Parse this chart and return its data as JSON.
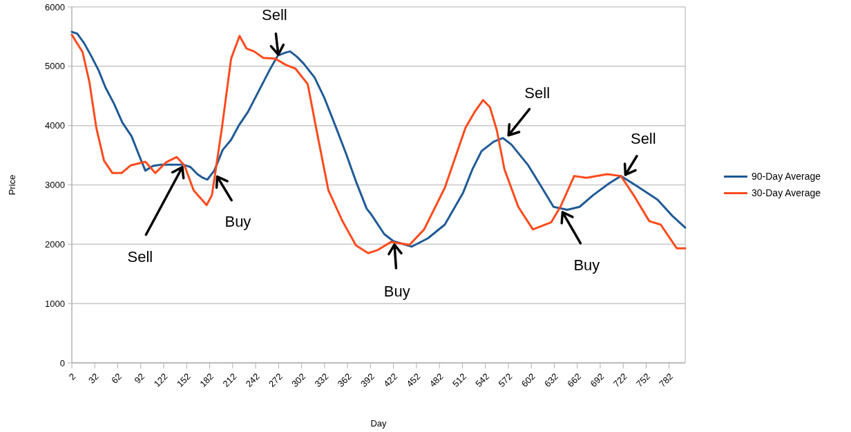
{
  "chart_data": {
    "type": "line",
    "xlabel": "Day",
    "ylabel": "Price",
    "xlim": [
      2,
      803
    ],
    "xticks": [
      2,
      32,
      62,
      92,
      122,
      152,
      182,
      212,
      242,
      272,
      302,
      332,
      362,
      392,
      422,
      452,
      482,
      512,
      542,
      572,
      602,
      632,
      662,
      692,
      722,
      752,
      782
    ],
    "ylim": [
      0,
      6000
    ],
    "yticks": [
      0,
      1000,
      2000,
      3000,
      4000,
      5000,
      6000
    ],
    "grid": "y",
    "legend": "right",
    "series": [
      {
        "name": "90-Day Average",
        "color": "#1f5a96",
        "x": [
          2,
          9,
          18,
          27,
          37,
          46,
          57,
          68,
          80,
          91,
          98,
          108,
          119,
          137,
          148,
          157,
          166,
          173,
          179,
          188,
          199,
          210,
          220,
          232,
          246,
          260,
          271,
          281,
          287,
          296,
          305,
          319,
          332,
          346,
          360,
          373,
          387,
          392,
          410,
          422,
          446,
          467,
          489,
          513,
          525,
          537,
          553,
          565,
          576,
          598,
          616,
          631,
          649,
          665,
          683,
          704,
          719,
          740,
          767,
          786,
          803
        ],
        "values": [
          5580,
          5550,
          5390,
          5180,
          4930,
          4640,
          4370,
          4050,
          3820,
          3460,
          3240,
          3320,
          3340,
          3340,
          3340,
          3300,
          3180,
          3120,
          3090,
          3240,
          3590,
          3760,
          4000,
          4230,
          4580,
          4930,
          5180,
          5230,
          5250,
          5160,
          5040,
          4810,
          4460,
          4000,
          3530,
          3060,
          2600,
          2520,
          2170,
          2050,
          1960,
          2100,
          2330,
          2870,
          3260,
          3570,
          3730,
          3790,
          3680,
          3330,
          2950,
          2630,
          2580,
          2630,
          2830,
          3030,
          3150,
          2980,
          2750,
          2480,
          2280
        ]
      },
      {
        "name": "30-Day Average",
        "color": "#ff4a1c",
        "x": [
          2,
          16,
          25,
          34,
          44,
          55,
          67,
          79,
          98,
          111,
          125,
          139,
          149,
          161,
          178,
          185,
          198,
          210,
          221,
          230,
          240,
          252,
          267,
          282,
          294,
          310,
          321,
          337,
          355,
          373,
          389,
          401,
          419,
          443,
          462,
          489,
          516,
          528,
          539,
          548,
          557,
          567,
          585,
          604,
          628,
          640,
          658,
          674,
          701,
          719,
          737,
          756,
          771,
          792,
          803
        ],
        "values": [
          5530,
          5240,
          4730,
          3960,
          3410,
          3200,
          3200,
          3330,
          3390,
          3200,
          3380,
          3470,
          3330,
          2910,
          2660,
          2830,
          3960,
          5130,
          5510,
          5300,
          5250,
          5140,
          5130,
          5020,
          4960,
          4700,
          3960,
          2910,
          2400,
          1980,
          1850,
          1900,
          2040,
          1990,
          2250,
          2950,
          3960,
          4230,
          4430,
          4310,
          3920,
          3260,
          2630,
          2250,
          2370,
          2630,
          3150,
          3120,
          3180,
          3150,
          2800,
          2390,
          2330,
          1930,
          1930
        ]
      }
    ],
    "annotations": [
      {
        "text": "Sell",
        "x": 148,
        "y": 3340
      },
      {
        "text": "Buy",
        "x": 190,
        "y": 3180
      },
      {
        "text": "Sell",
        "x": 272,
        "y": 5150
      },
      {
        "text": "Buy",
        "x": 423,
        "y": 2040
      },
      {
        "text": "Sell",
        "x": 570,
        "y": 3800
      },
      {
        "text": "Buy",
        "x": 641,
        "y": 2580
      },
      {
        "text": "Sell",
        "x": 723,
        "y": 3130
      }
    ]
  }
}
